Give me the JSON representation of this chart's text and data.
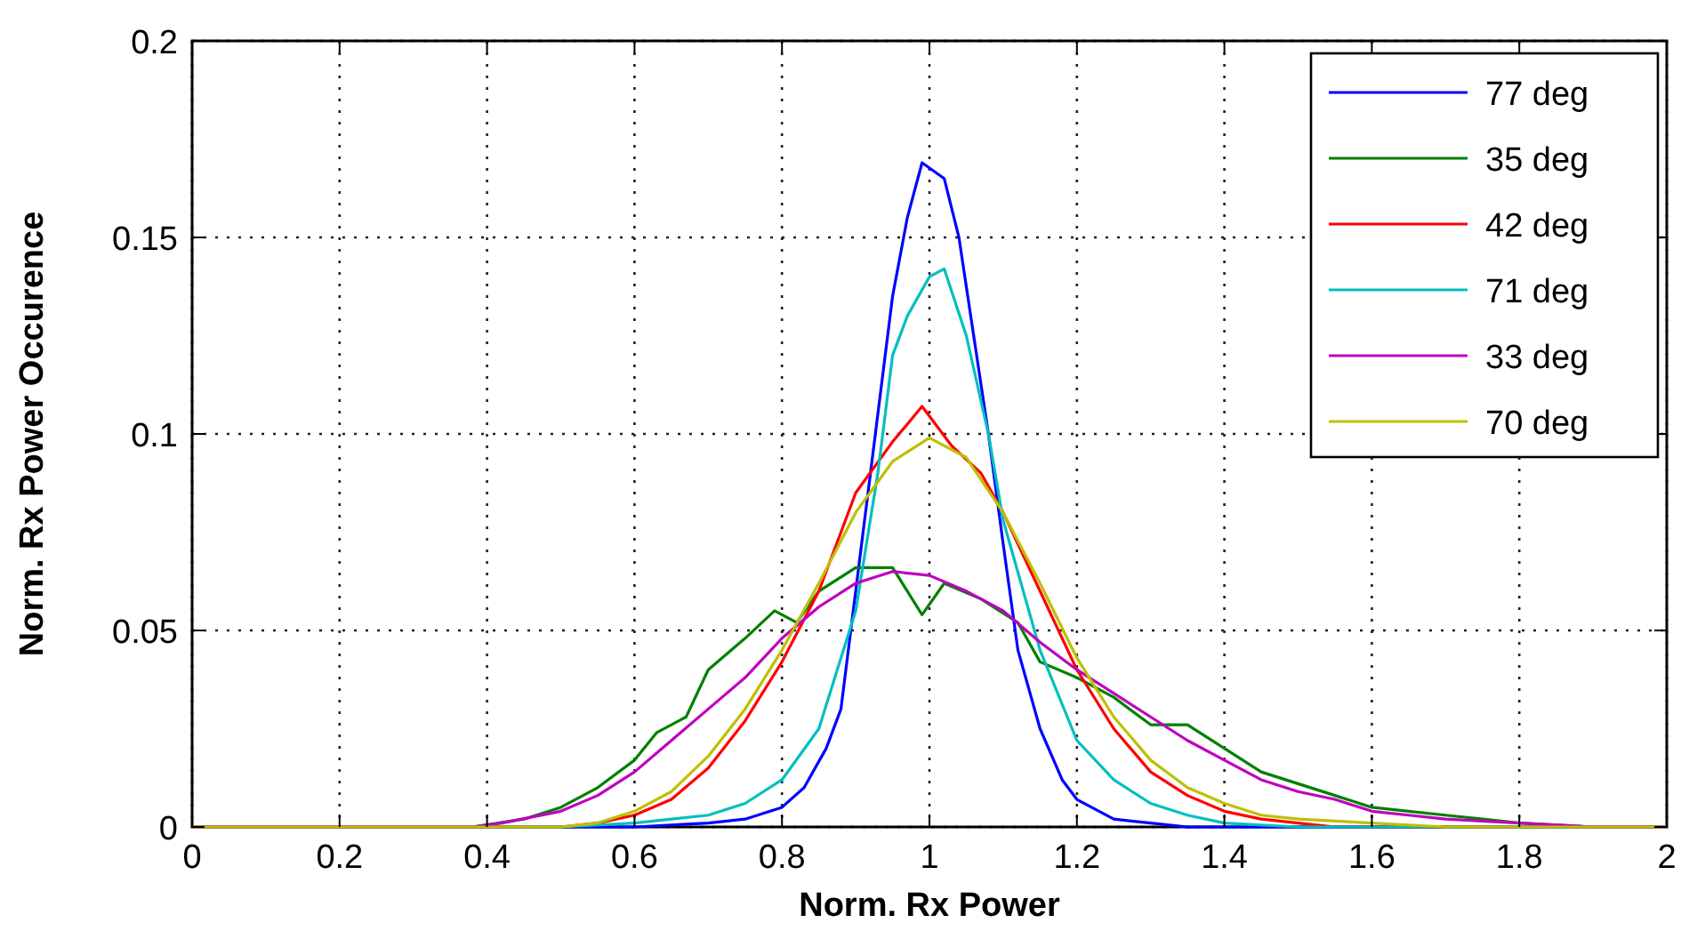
{
  "chart_data": {
    "type": "line",
    "xlabel": "Norm. Rx Power",
    "ylabel": "Norm. Rx Power Occurence",
    "xlim": [
      0,
      2
    ],
    "ylim": [
      0,
      0.2
    ],
    "xticks": [
      0,
      0.2,
      0.4,
      0.6,
      0.8,
      1,
      1.2,
      1.4,
      1.6,
      1.8,
      2
    ],
    "yticks": [
      0,
      0.05,
      0.1,
      0.15,
      0.2
    ],
    "grid": true,
    "legend": "top right",
    "line_style": "solid",
    "marker": "none",
    "series": [
      {
        "name": "77 deg",
        "color": "#0000ff",
        "x": [
          0,
          0.6,
          0.7,
          0.75,
          0.8,
          0.83,
          0.86,
          0.88,
          0.9,
          0.92,
          0.95,
          0.97,
          0.99,
          1.02,
          1.04,
          1.06,
          1.08,
          1.1,
          1.12,
          1.15,
          1.18,
          1.2,
          1.25,
          1.3,
          1.35,
          2
        ],
        "values": [
          0,
          0,
          0.001,
          0.002,
          0.005,
          0.01,
          0.02,
          0.03,
          0.06,
          0.09,
          0.135,
          0.155,
          0.169,
          0.165,
          0.15,
          0.125,
          0.1,
          0.072,
          0.045,
          0.025,
          0.012,
          0.007,
          0.002,
          0.001,
          0,
          0
        ]
      },
      {
        "name": "35 deg",
        "color": "#008000",
        "x": [
          0,
          0.38,
          0.45,
          0.5,
          0.55,
          0.6,
          0.63,
          0.67,
          0.7,
          0.75,
          0.79,
          0.82,
          0.85,
          0.9,
          0.95,
          0.99,
          1.02,
          1.07,
          1.12,
          1.15,
          1.2,
          1.25,
          1.3,
          1.35,
          1.4,
          1.45,
          1.5,
          1.55,
          1.6,
          1.65,
          1.7,
          1.75,
          1.8,
          1.9,
          2
        ],
        "values": [
          0,
          0,
          0.002,
          0.005,
          0.01,
          0.017,
          0.024,
          0.028,
          0.04,
          0.048,
          0.055,
          0.052,
          0.06,
          0.066,
          0.066,
          0.054,
          0.062,
          0.058,
          0.052,
          0.042,
          0.038,
          0.033,
          0.026,
          0.026,
          0.02,
          0.014,
          0.011,
          0.008,
          0.005,
          0.004,
          0.003,
          0.002,
          0.001,
          0,
          0
        ]
      },
      {
        "name": "42 deg",
        "color": "#ff0000",
        "x": [
          0,
          0.5,
          0.55,
          0.6,
          0.65,
          0.7,
          0.75,
          0.8,
          0.85,
          0.9,
          0.95,
          0.99,
          1.03,
          1.07,
          1.1,
          1.15,
          1.2,
          1.25,
          1.3,
          1.35,
          1.4,
          1.45,
          1.5,
          1.55,
          2
        ],
        "values": [
          0,
          0,
          0.001,
          0.003,
          0.007,
          0.015,
          0.027,
          0.042,
          0.06,
          0.085,
          0.098,
          0.107,
          0.097,
          0.09,
          0.08,
          0.06,
          0.04,
          0.025,
          0.014,
          0.008,
          0.004,
          0.002,
          0.001,
          0,
          0
        ]
      },
      {
        "name": "71 deg",
        "color": "#00bfbf",
        "x": [
          0,
          0.5,
          0.6,
          0.7,
          0.75,
          0.8,
          0.85,
          0.9,
          0.93,
          0.95,
          0.97,
          1.0,
          1.02,
          1.05,
          1.08,
          1.1,
          1.15,
          1.2,
          1.25,
          1.3,
          1.35,
          1.4,
          1.5,
          2
        ],
        "values": [
          0,
          0,
          0.001,
          0.003,
          0.006,
          0.012,
          0.025,
          0.055,
          0.09,
          0.12,
          0.13,
          0.14,
          0.142,
          0.125,
          0.1,
          0.078,
          0.045,
          0.022,
          0.012,
          0.006,
          0.003,
          0.001,
          0,
          0
        ]
      },
      {
        "name": "33 deg",
        "color": "#bf00bf",
        "x": [
          0,
          0.38,
          0.42,
          0.5,
          0.55,
          0.6,
          0.65,
          0.7,
          0.75,
          0.8,
          0.85,
          0.9,
          0.95,
          1.0,
          1.05,
          1.1,
          1.15,
          1.2,
          1.25,
          1.3,
          1.35,
          1.4,
          1.45,
          1.5,
          1.55,
          1.6,
          1.65,
          1.7,
          1.8,
          1.9,
          2
        ],
        "values": [
          0,
          0,
          0.001,
          0.004,
          0.008,
          0.014,
          0.022,
          0.03,
          0.038,
          0.048,
          0.056,
          0.062,
          0.065,
          0.064,
          0.06,
          0.055,
          0.047,
          0.04,
          0.034,
          0.028,
          0.022,
          0.017,
          0.012,
          0.009,
          0.007,
          0.004,
          0.003,
          0.002,
          0.001,
          0,
          0
        ]
      },
      {
        "name": "70 deg",
        "color": "#bfbf00",
        "x": [
          0,
          0.5,
          0.55,
          0.6,
          0.65,
          0.7,
          0.75,
          0.8,
          0.85,
          0.9,
          0.95,
          1.0,
          1.05,
          1.1,
          1.15,
          1.2,
          1.25,
          1.3,
          1.35,
          1.4,
          1.45,
          1.5,
          1.6,
          1.7,
          2
        ],
        "values": [
          0,
          0,
          0.001,
          0.004,
          0.009,
          0.018,
          0.03,
          0.045,
          0.062,
          0.08,
          0.093,
          0.099,
          0.094,
          0.08,
          0.062,
          0.043,
          0.028,
          0.017,
          0.01,
          0.006,
          0.003,
          0.002,
          0.001,
          0,
          0
        ]
      }
    ]
  }
}
